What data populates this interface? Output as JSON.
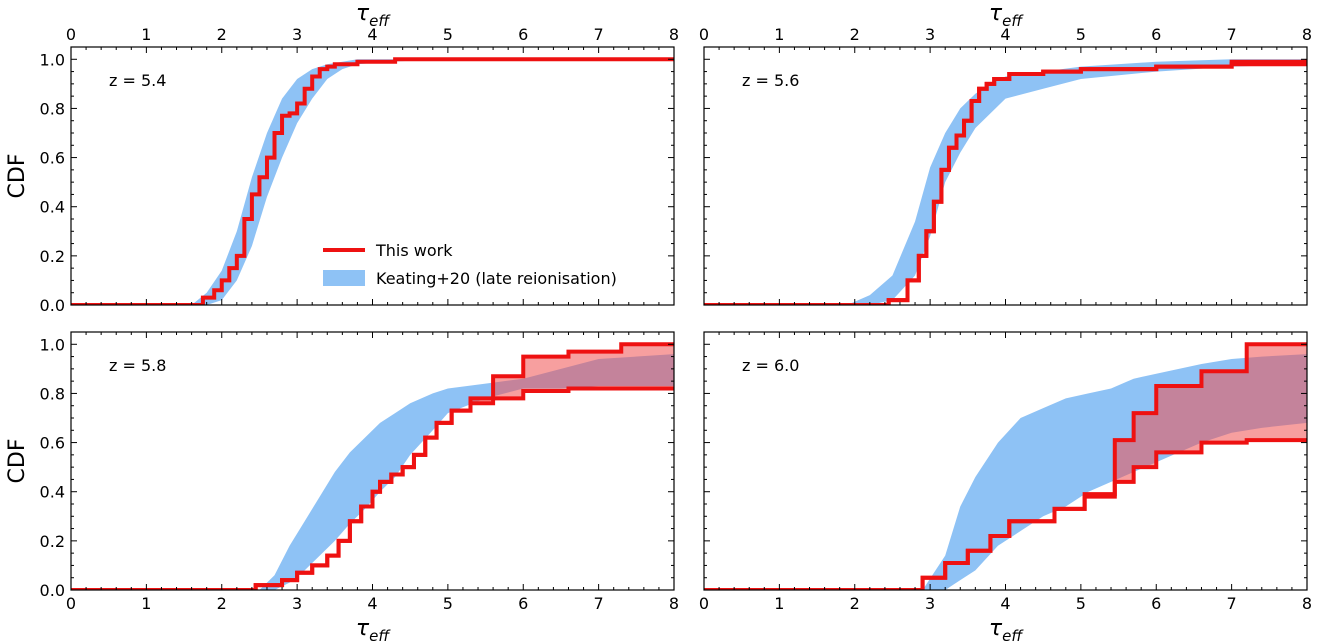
{
  "chart_data": [
    {
      "type": "line",
      "panel_label": "z = 5.4",
      "xlabel_top": "τ_eff",
      "xlabel_bottom": "",
      "ylabel": "CDF",
      "xlim": [
        0,
        8
      ],
      "ylim": [
        0,
        1.05
      ],
      "xticks": [
        "0",
        "1",
        "2",
        "3",
        "4",
        "5",
        "6",
        "7",
        "8"
      ],
      "yticks": [
        "0.0",
        "0.2",
        "0.4",
        "0.6",
        "0.8",
        "1.0"
      ],
      "legend": {
        "placement": "center-bottom",
        "items": [
          "This work",
          "Keating+20 (late reionisation)"
        ]
      },
      "model_band": {
        "x": [
          1.6,
          1.8,
          2.0,
          2.2,
          2.4,
          2.6,
          2.8,
          3.0,
          3.2,
          3.4,
          3.6,
          3.8,
          4.2,
          5.0
        ],
        "lower": [
          0.0,
          0.0,
          0.02,
          0.1,
          0.24,
          0.44,
          0.6,
          0.74,
          0.84,
          0.92,
          0.96,
          0.98,
          0.99,
          1.0
        ],
        "upper": [
          0.0,
          0.05,
          0.14,
          0.3,
          0.52,
          0.7,
          0.84,
          0.92,
          0.96,
          0.98,
          0.99,
          1.0,
          1.0,
          1.0
        ]
      },
      "this_work": {
        "x": [
          0,
          1.65,
          1.75,
          1.9,
          2.0,
          2.1,
          2.2,
          2.3,
          2.4,
          2.5,
          2.6,
          2.7,
          2.8,
          2.9,
          3.0,
          3.1,
          3.2,
          3.3,
          3.4,
          3.5,
          3.8,
          4.3,
          4.6,
          8
        ],
        "lower": [
          0,
          0,
          0.03,
          0.06,
          0.1,
          0.15,
          0.2,
          0.35,
          0.45,
          0.52,
          0.6,
          0.7,
          0.77,
          0.78,
          0.82,
          0.88,
          0.93,
          0.96,
          0.97,
          0.98,
          0.99,
          1.0,
          1.0,
          1.0
        ],
        "upper": [
          0,
          0,
          0.03,
          0.06,
          0.1,
          0.15,
          0.2,
          0.35,
          0.45,
          0.52,
          0.6,
          0.7,
          0.77,
          0.78,
          0.82,
          0.88,
          0.93,
          0.96,
          0.97,
          0.98,
          0.99,
          1.0,
          1.0,
          1.0
        ]
      }
    },
    {
      "type": "line",
      "panel_label": "z = 5.6",
      "xlabel_top": "τ_eff",
      "xlabel_bottom": "",
      "ylabel": "",
      "xlim": [
        0,
        8
      ],
      "ylim": [
        0,
        1.05
      ],
      "xticks": [
        "0",
        "1",
        "2",
        "3",
        "4",
        "5",
        "6",
        "7",
        "8"
      ],
      "yticks": [],
      "model_band": {
        "x": [
          1.9,
          2.2,
          2.5,
          2.8,
          3.0,
          3.2,
          3.4,
          3.6,
          3.8,
          4.0,
          4.5,
          5.0,
          6.0,
          7.0,
          8.0
        ],
        "lower": [
          0.0,
          0.0,
          0.02,
          0.12,
          0.28,
          0.5,
          0.62,
          0.72,
          0.78,
          0.84,
          0.88,
          0.92,
          0.95,
          0.97,
          0.98
        ],
        "upper": [
          0.0,
          0.04,
          0.12,
          0.34,
          0.56,
          0.7,
          0.8,
          0.86,
          0.9,
          0.93,
          0.95,
          0.97,
          0.99,
          1.0,
          1.0
        ]
      },
      "this_work": {
        "x": [
          0,
          2.35,
          2.45,
          2.7,
          2.85,
          2.95,
          3.05,
          3.15,
          3.25,
          3.35,
          3.45,
          3.55,
          3.65,
          3.75,
          3.85,
          4.05,
          4.5,
          5.0,
          6.0,
          7.0,
          8
        ],
        "lower": [
          0,
          0,
          0.02,
          0.1,
          0.2,
          0.3,
          0.42,
          0.55,
          0.64,
          0.69,
          0.75,
          0.83,
          0.88,
          0.9,
          0.92,
          0.94,
          0.95,
          0.96,
          0.97,
          0.98,
          0.98
        ],
        "upper": [
          0,
          0,
          0.02,
          0.1,
          0.2,
          0.3,
          0.42,
          0.55,
          0.64,
          0.69,
          0.75,
          0.83,
          0.88,
          0.9,
          0.92,
          0.94,
          0.95,
          0.96,
          0.97,
          0.99,
          1.0
        ]
      }
    },
    {
      "type": "line",
      "panel_label": "z = 5.8",
      "xlabel_top": "",
      "xlabel_bottom": "τ_eff",
      "ylabel": "CDF",
      "xlim": [
        0,
        8
      ],
      "ylim": [
        0,
        1.05
      ],
      "xticks": [
        "0",
        "1",
        "2",
        "3",
        "4",
        "5",
        "6",
        "7",
        "8"
      ],
      "yticks": [
        "0.0",
        "0.2",
        "0.4",
        "0.6",
        "0.8",
        "1.0"
      ],
      "model_band": {
        "x": [
          2.5,
          2.7,
          2.9,
          3.1,
          3.3,
          3.5,
          3.7,
          3.9,
          4.1,
          4.3,
          4.5,
          4.8,
          5.0,
          5.5,
          6.0,
          6.5,
          7.0,
          8.0
        ],
        "lower": [
          0.0,
          0.0,
          0.03,
          0.08,
          0.14,
          0.2,
          0.27,
          0.33,
          0.4,
          0.46,
          0.55,
          0.65,
          0.72,
          0.78,
          0.82,
          0.82,
          0.83,
          0.83
        ],
        "upper": [
          0.0,
          0.06,
          0.18,
          0.28,
          0.38,
          0.48,
          0.56,
          0.62,
          0.68,
          0.72,
          0.76,
          0.8,
          0.82,
          0.84,
          0.86,
          0.9,
          0.94,
          0.96
        ]
      },
      "this_work": {
        "x": [
          0,
          2.45,
          2.8,
          3.0,
          3.2,
          3.4,
          3.55,
          3.7,
          3.85,
          4.0,
          4.1,
          4.25,
          4.4,
          4.55,
          4.7,
          4.85,
          5.05,
          5.3,
          5.6,
          6.0,
          6.6,
          7.3,
          8
        ],
        "lower": [
          0,
          0.02,
          0.04,
          0.07,
          0.1,
          0.14,
          0.2,
          0.28,
          0.34,
          0.4,
          0.44,
          0.47,
          0.5,
          0.55,
          0.62,
          0.68,
          0.73,
          0.76,
          0.78,
          0.81,
          0.82,
          0.82,
          0.82
        ],
        "upper": [
          0,
          0.02,
          0.04,
          0.07,
          0.1,
          0.14,
          0.2,
          0.28,
          0.34,
          0.4,
          0.44,
          0.47,
          0.5,
          0.55,
          0.62,
          0.68,
          0.73,
          0.78,
          0.87,
          0.95,
          0.97,
          1.0,
          1.0
        ]
      }
    },
    {
      "type": "line",
      "panel_label": "z = 6.0",
      "xlabel_top": "",
      "xlabel_bottom": "τ_eff",
      "ylabel": "",
      "xlim": [
        0,
        8
      ],
      "ylim": [
        0,
        1.05
      ],
      "xticks": [
        "0",
        "1",
        "2",
        "3",
        "4",
        "5",
        "6",
        "7",
        "8"
      ],
      "yticks": [],
      "model_band": {
        "x": [
          2.9,
          3.2,
          3.4,
          3.6,
          3.9,
          4.2,
          4.5,
          4.8,
          5.1,
          5.4,
          5.7,
          6.0,
          6.3,
          6.6,
          7.0,
          7.4,
          8.0
        ],
        "lower": [
          0.0,
          0.0,
          0.04,
          0.08,
          0.18,
          0.24,
          0.3,
          0.34,
          0.4,
          0.44,
          0.48,
          0.52,
          0.56,
          0.6,
          0.64,
          0.66,
          0.68
        ],
        "upper": [
          0.0,
          0.14,
          0.34,
          0.46,
          0.6,
          0.7,
          0.74,
          0.78,
          0.8,
          0.82,
          0.86,
          0.88,
          0.9,
          0.92,
          0.94,
          0.95,
          0.96
        ]
      },
      "this_work": {
        "x": [
          0,
          2.9,
          3.2,
          3.5,
          3.8,
          4.05,
          4.4,
          4.65,
          5.05,
          5.45,
          5.7,
          6.0,
          6.6,
          7.2,
          8
        ],
        "lower": [
          0,
          0.05,
          0.11,
          0.16,
          0.22,
          0.28,
          0.28,
          0.33,
          0.38,
          0.44,
          0.5,
          0.56,
          0.6,
          0.61,
          0.61
        ],
        "upper": [
          0,
          0.05,
          0.11,
          0.16,
          0.22,
          0.28,
          0.28,
          0.33,
          0.39,
          0.61,
          0.72,
          0.83,
          0.89,
          1.0,
          1.0
        ]
      }
    }
  ]
}
